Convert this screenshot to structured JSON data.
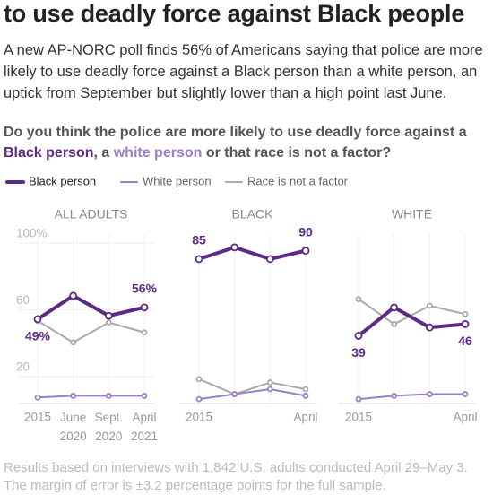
{
  "header": {
    "title": "to use deadly force against Black people",
    "intro": [
      "A new AP-NORC poll finds 56% of Americans saying that police are more",
      "likely to use deadly force against a Black person than a white person, an",
      "uptick from September but slightly lower than a high point last June."
    ],
    "question": {
      "line1": "Do you think the police are more likely to use deadly force against a",
      "line2": [
        "Black person",
        ", a ",
        "white person",
        " or that race is not a factor?"
      ]
    }
  },
  "footnote": [
    "Results based on interviews with 1,842 U.S. adults conducted April 29–May 3.",
    "The margin of error is ±3.2 percentage points for the full sample."
  ],
  "chart_data": [
    {
      "type": "line",
      "title": "ALL ADULTS",
      "categories": [
        "2015",
        "June 2020",
        "Sept. 2020",
        "April 2021"
      ],
      "ylim": [
        0,
        100
      ],
      "yticks": [
        {
          "value": 100,
          "label": "100%"
        },
        60,
        20
      ],
      "series": [
        {
          "name": "Black person",
          "color": "#5b2a86",
          "values": [
            49,
            63,
            51,
            56
          ],
          "value_labels": [
            "49%",
            null,
            null,
            "56%"
          ]
        },
        {
          "name": "White person",
          "color": "#9b7fc8",
          "values": [
            2,
            3,
            3,
            3
          ]
        },
        {
          "name": "Race is not a factor",
          "color": "#aaaaaa",
          "values": [
            48,
            35,
            47,
            41
          ]
        }
      ]
    },
    {
      "type": "line",
      "title": "BLACK",
      "categories": [
        "2015",
        null,
        null,
        "April"
      ],
      "ylim": [
        0,
        100
      ],
      "series": [
        {
          "color": "#5b2a86",
          "values": [
            85,
            92,
            85,
            90
          ],
          "value_labels": [
            "85",
            null,
            null,
            "90"
          ]
        },
        {
          "color": "#9b7fc8",
          "values": [
            1,
            4,
            7,
            3
          ]
        },
        {
          "color": "#aaaaaa",
          "values": [
            13,
            4,
            11,
            7
          ]
        }
      ]
    },
    {
      "type": "line",
      "title": "WHITE",
      "categories": [
        "2015",
        null,
        null,
        "April"
      ],
      "ylim": [
        0,
        100
      ],
      "series": [
        {
          "color": "#5b2a86",
          "values": [
            39,
            56,
            44,
            46
          ],
          "value_labels": [
            "39",
            null,
            null,
            "46"
          ]
        },
        {
          "color": "#9b7fc8",
          "values": [
            1,
            3,
            4,
            4
          ]
        },
        {
          "color": "#aaaaaa",
          "values": [
            61,
            46,
            57,
            52
          ]
        }
      ]
    }
  ]
}
